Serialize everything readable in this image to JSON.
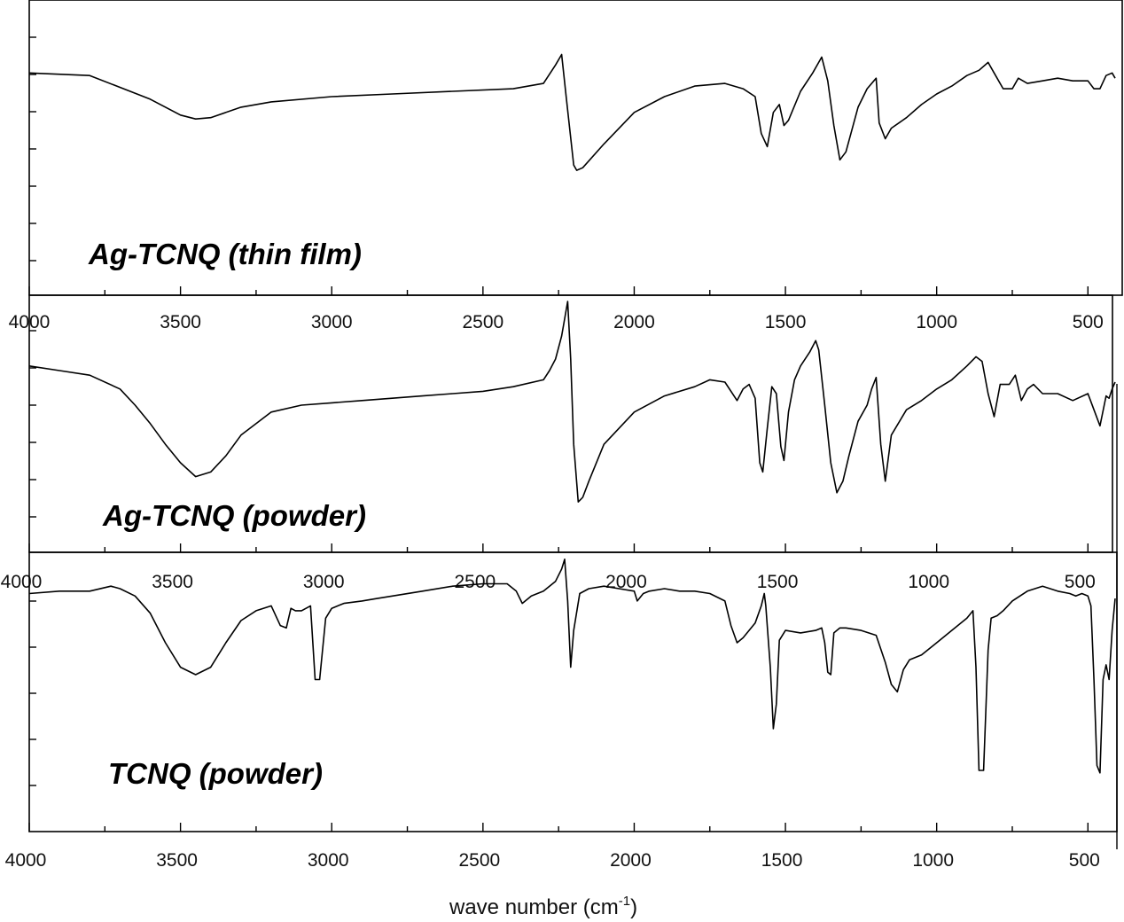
{
  "chart_data": [
    {
      "type": "line",
      "label": "Ag-TCNQ (thin film)",
      "xlim": [
        4000,
        410
      ],
      "x_ticks": [
        4000,
        3500,
        3000,
        2500,
        2000,
        1500,
        1000,
        500
      ],
      "x": [
        4000,
        3800,
        3600,
        3500,
        3450,
        3400,
        3300,
        3200,
        3000,
        2800,
        2600,
        2400,
        2300,
        2260,
        2240,
        2225,
        2200,
        2190,
        2170,
        2100,
        2000,
        1900,
        1800,
        1700,
        1640,
        1600,
        1580,
        1560,
        1540,
        1520,
        1505,
        1490,
        1450,
        1410,
        1380,
        1360,
        1340,
        1320,
        1300,
        1260,
        1230,
        1200,
        1190,
        1170,
        1150,
        1100,
        1050,
        1000,
        950,
        900,
        860,
        830,
        810,
        780,
        750,
        730,
        700,
        650,
        600,
        550,
        500,
        480,
        460,
        440,
        420,
        410
      ],
      "y": [
        0.75,
        0.74,
        0.65,
        0.59,
        0.575,
        0.58,
        0.62,
        0.64,
        0.66,
        0.67,
        0.68,
        0.69,
        0.71,
        0.78,
        0.82,
        0.66,
        0.4,
        0.38,
        0.39,
        0.48,
        0.6,
        0.66,
        0.7,
        0.71,
        0.69,
        0.66,
        0.52,
        0.47,
        0.6,
        0.63,
        0.55,
        0.57,
        0.68,
        0.75,
        0.81,
        0.72,
        0.55,
        0.42,
        0.45,
        0.62,
        0.69,
        0.73,
        0.56,
        0.5,
        0.54,
        0.58,
        0.63,
        0.67,
        0.7,
        0.74,
        0.76,
        0.79,
        0.75,
        0.69,
        0.69,
        0.73,
        0.71,
        0.72,
        0.73,
        0.72,
        0.72,
        0.69,
        0.69,
        0.74,
        0.75,
        0.73
      ]
    },
    {
      "type": "line",
      "label": "Ag-TCNQ (powder)",
      "xlim": [
        4000,
        410
      ],
      "x_ticks": [
        4000,
        3500,
        3000,
        2500,
        2000,
        1500,
        1000,
        500
      ],
      "x": [
        4000,
        3900,
        3800,
        3700,
        3650,
        3600,
        3550,
        3500,
        3450,
        3400,
        3350,
        3300,
        3200,
        3100,
        3000,
        2900,
        2800,
        2700,
        2600,
        2500,
        2400,
        2300,
        2280,
        2260,
        2240,
        2220,
        2210,
        2200,
        2185,
        2170,
        2150,
        2100,
        2000,
        1900,
        1800,
        1750,
        1700,
        1660,
        1640,
        1620,
        1600,
        1585,
        1575,
        1560,
        1545,
        1530,
        1515,
        1505,
        1490,
        1470,
        1450,
        1420,
        1400,
        1390,
        1370,
        1350,
        1330,
        1310,
        1290,
        1260,
        1230,
        1215,
        1200,
        1185,
        1170,
        1150,
        1100,
        1050,
        1000,
        950,
        900,
        870,
        850,
        830,
        810,
        790,
        760,
        740,
        720,
        700,
        680,
        650,
        600,
        550,
        500,
        480,
        460,
        440,
        430,
        420,
        410
      ],
      "y": [
        0.72,
        0.7,
        0.68,
        0.62,
        0.55,
        0.47,
        0.38,
        0.3,
        0.24,
        0.26,
        0.33,
        0.42,
        0.52,
        0.55,
        0.56,
        0.57,
        0.58,
        0.59,
        0.6,
        0.61,
        0.63,
        0.66,
        0.7,
        0.75,
        0.85,
        1.0,
        0.75,
        0.38,
        0.13,
        0.15,
        0.22,
        0.38,
        0.52,
        0.59,
        0.63,
        0.66,
        0.65,
        0.57,
        0.62,
        0.64,
        0.58,
        0.3,
        0.26,
        0.45,
        0.63,
        0.6,
        0.37,
        0.31,
        0.52,
        0.66,
        0.72,
        0.78,
        0.83,
        0.79,
        0.55,
        0.3,
        0.17,
        0.22,
        0.33,
        0.48,
        0.55,
        0.62,
        0.67,
        0.38,
        0.22,
        0.42,
        0.53,
        0.57,
        0.62,
        0.66,
        0.72,
        0.76,
        0.74,
        0.6,
        0.5,
        0.64,
        0.64,
        0.68,
        0.57,
        0.62,
        0.64,
        0.6,
        0.6,
        0.57,
        0.6,
        0.53,
        0.46,
        0.59,
        0.58,
        0.62,
        0.65
      ]
    },
    {
      "type": "line",
      "label": "TCNQ (powder)",
      "xlim": [
        4000,
        410
      ],
      "x_ticks": [
        4000,
        3500,
        3000,
        2500,
        2000,
        1500,
        1000,
        500
      ],
      "x_label": "wave number (cm",
      "x_label_sup": "-1",
      "x_label_end": ")",
      "x": [
        4000,
        3900,
        3800,
        3730,
        3700,
        3650,
        3600,
        3550,
        3500,
        3450,
        3400,
        3350,
        3300,
        3250,
        3200,
        3170,
        3150,
        3135,
        3120,
        3100,
        3070,
        3055,
        3040,
        3020,
        3000,
        2960,
        2900,
        2850,
        2800,
        2700,
        2600,
        2500,
        2420,
        2390,
        2370,
        2340,
        2300,
        2280,
        2260,
        2240,
        2230,
        2220,
        2210,
        2200,
        2180,
        2150,
        2100,
        2050,
        2000,
        1990,
        1970,
        1950,
        1900,
        1850,
        1800,
        1750,
        1700,
        1680,
        1660,
        1640,
        1600,
        1580,
        1570,
        1565,
        1550,
        1540,
        1530,
        1520,
        1500,
        1450,
        1400,
        1380,
        1370,
        1360,
        1350,
        1340,
        1320,
        1300,
        1250,
        1200,
        1170,
        1150,
        1130,
        1110,
        1090,
        1050,
        1000,
        950,
        900,
        880,
        870,
        860,
        845,
        830,
        820,
        800,
        780,
        750,
        700,
        650,
        600,
        560,
        540,
        520,
        500,
        490,
        480,
        470,
        460,
        450,
        440,
        430,
        420,
        410
      ],
      "y": [
        0.85,
        0.86,
        0.86,
        0.88,
        0.87,
        0.84,
        0.77,
        0.65,
        0.55,
        0.52,
        0.55,
        0.65,
        0.74,
        0.78,
        0.8,
        0.72,
        0.71,
        0.79,
        0.78,
        0.78,
        0.8,
        0.5,
        0.5,
        0.75,
        0.79,
        0.81,
        0.82,
        0.83,
        0.84,
        0.86,
        0.88,
        0.89,
        0.89,
        0.86,
        0.81,
        0.84,
        0.86,
        0.88,
        0.9,
        0.95,
        0.99,
        0.82,
        0.55,
        0.7,
        0.85,
        0.87,
        0.88,
        0.87,
        0.86,
        0.82,
        0.85,
        0.86,
        0.87,
        0.86,
        0.86,
        0.85,
        0.82,
        0.72,
        0.65,
        0.67,
        0.73,
        0.8,
        0.85,
        0.8,
        0.55,
        0.3,
        0.4,
        0.66,
        0.7,
        0.69,
        0.7,
        0.71,
        0.65,
        0.53,
        0.52,
        0.69,
        0.71,
        0.71,
        0.7,
        0.68,
        0.57,
        0.48,
        0.45,
        0.54,
        0.58,
        0.6,
        0.65,
        0.7,
        0.75,
        0.78,
        0.55,
        0.13,
        0.13,
        0.62,
        0.75,
        0.76,
        0.78,
        0.82,
        0.86,
        0.88,
        0.86,
        0.85,
        0.84,
        0.85,
        0.84,
        0.8,
        0.5,
        0.15,
        0.12,
        0.5,
        0.56,
        0.5,
        0.7,
        0.83
      ]
    }
  ]
}
